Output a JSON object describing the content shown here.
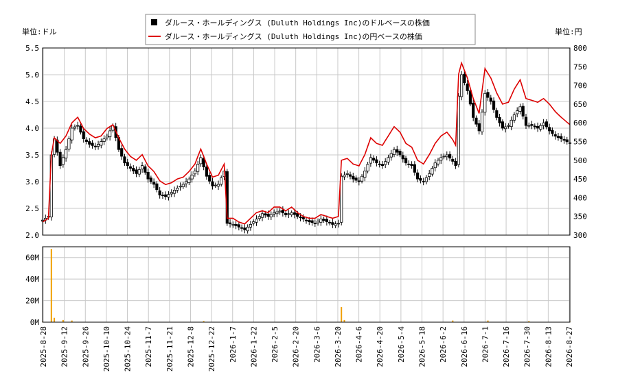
{
  "legend": {
    "usd_label": "ダルース・ホールディングス (Duluth Holdings Inc)のドルベースの株価",
    "jpy_label": "ダルース・ホールディングス (Duluth Holdings Inc)の円ベースの株価"
  },
  "axis_units": {
    "left": "単位:ドル",
    "right": "単位:円"
  },
  "colors": {
    "usd_candle": "#000000",
    "jpy_line": "#dd0000",
    "volume_bar": "#f0a000",
    "grid": "#c8c8c8"
  },
  "chart_data": {
    "type": "line",
    "title": "",
    "x_ticks": [
      "2025-8-28",
      "2025-9-12",
      "2025-9-26",
      "2025-10-10",
      "2025-10-24",
      "2025-11-7",
      "2025-11-21",
      "2025-12-8",
      "2025-12-22",
      "2026-1-7",
      "2026-1-22",
      "2026-2-5",
      "2026-2-20",
      "2026-3-6",
      "2026-3-20",
      "2026-4-6",
      "2026-4-20",
      "2026-5-4",
      "2026-5-18",
      "2026-6-2",
      "2026-6-16",
      "2026-7-1",
      "2026-7-16",
      "2026-7-30",
      "2026-8-13",
      "2026-8-27"
    ],
    "usd_axis": {
      "ylim": [
        2.0,
        5.5
      ],
      "ticks": [
        "2.0",
        "2.5",
        "3.0",
        "3.5",
        "4.0",
        "4.5",
        "5.0",
        "5.5"
      ]
    },
    "jpy_axis": {
      "ylim": [
        300,
        800
      ],
      "ticks": [
        "300",
        "350",
        "400",
        "450",
        "500",
        "550",
        "600",
        "650",
        "700",
        "750",
        "800"
      ]
    },
    "volume_axis": {
      "ylim": [
        0,
        70
      ],
      "unit": "M",
      "ticks": [
        "0M",
        "20M",
        "40M",
        "60M"
      ]
    },
    "usd_keypoints": [
      [
        0,
        2.28
      ],
      [
        2,
        2.35
      ],
      [
        3,
        3.5
      ],
      [
        4,
        3.8
      ],
      [
        6,
        3.3
      ],
      [
        8,
        3.6
      ],
      [
        10,
        4.0
      ],
      [
        12,
        4.05
      ],
      [
        14,
        3.8
      ],
      [
        16,
        3.7
      ],
      [
        18,
        3.65
      ],
      [
        20,
        3.75
      ],
      [
        22,
        3.85
      ],
      [
        24,
        4.05
      ],
      [
        26,
        3.6
      ],
      [
        28,
        3.35
      ],
      [
        30,
        3.25
      ],
      [
        32,
        3.15
      ],
      [
        34,
        3.3
      ],
      [
        36,
        3.05
      ],
      [
        38,
        2.95
      ],
      [
        40,
        2.75
      ],
      [
        42,
        2.72
      ],
      [
        44,
        2.8
      ],
      [
        46,
        2.88
      ],
      [
        48,
        2.95
      ],
      [
        50,
        3.05
      ],
      [
        52,
        3.2
      ],
      [
        54,
        3.45
      ],
      [
        56,
        3.1
      ],
      [
        58,
        2.92
      ],
      [
        60,
        2.95
      ],
      [
        62,
        3.2
      ],
      [
        63,
        2.22
      ],
      [
        65,
        2.2
      ],
      [
        67,
        2.15
      ],
      [
        69,
        2.1
      ],
      [
        71,
        2.2
      ],
      [
        73,
        2.3
      ],
      [
        75,
        2.4
      ],
      [
        77,
        2.35
      ],
      [
        79,
        2.42
      ],
      [
        81,
        2.45
      ],
      [
        83,
        2.38
      ],
      [
        85,
        2.42
      ],
      [
        87,
        2.35
      ],
      [
        89,
        2.3
      ],
      [
        91,
        2.25
      ],
      [
        93,
        2.22
      ],
      [
        95,
        2.3
      ],
      [
        97,
        2.25
      ],
      [
        99,
        2.2
      ],
      [
        101,
        2.22
      ],
      [
        102,
        3.1
      ],
      [
        104,
        3.15
      ],
      [
        106,
        3.05
      ],
      [
        108,
        3.0
      ],
      [
        110,
        3.2
      ],
      [
        112,
        3.45
      ],
      [
        114,
        3.35
      ],
      [
        116,
        3.3
      ],
      [
        118,
        3.45
      ],
      [
        120,
        3.6
      ],
      [
        122,
        3.5
      ],
      [
        124,
        3.35
      ],
      [
        126,
        3.3
      ],
      [
        128,
        3.05
      ],
      [
        130,
        3.0
      ],
      [
        132,
        3.15
      ],
      [
        134,
        3.35
      ],
      [
        136,
        3.45
      ],
      [
        138,
        3.5
      ],
      [
        140,
        3.38
      ],
      [
        141,
        3.3
      ],
      [
        142,
        4.6
      ],
      [
        143,
        5.0
      ],
      [
        145,
        4.7
      ],
      [
        147,
        4.2
      ],
      [
        149,
        3.95
      ],
      [
        151,
        4.65
      ],
      [
        153,
        4.5
      ],
      [
        155,
        4.2
      ],
      [
        157,
        4.0
      ],
      [
        159,
        4.05
      ],
      [
        161,
        4.25
      ],
      [
        163,
        4.4
      ],
      [
        165,
        4.05
      ],
      [
        167,
        4.05
      ],
      [
        169,
        4.0
      ],
      [
        171,
        4.1
      ],
      [
        173,
        3.95
      ],
      [
        175,
        3.85
      ],
      [
        177,
        3.8
      ],
      [
        180,
        3.72
      ]
    ],
    "jpy_keypoints": [
      [
        0,
        335
      ],
      [
        2,
        345
      ],
      [
        3,
        515
      ],
      [
        4,
        560
      ],
      [
        6,
        545
      ],
      [
        8,
        565
      ],
      [
        10,
        600
      ],
      [
        12,
        615
      ],
      [
        14,
        585
      ],
      [
        16,
        570
      ],
      [
        18,
        560
      ],
      [
        20,
        565
      ],
      [
        22,
        585
      ],
      [
        24,
        595
      ],
      [
        26,
        560
      ],
      [
        28,
        530
      ],
      [
        30,
        510
      ],
      [
        32,
        500
      ],
      [
        34,
        515
      ],
      [
        36,
        485
      ],
      [
        38,
        470
      ],
      [
        40,
        445
      ],
      [
        42,
        435
      ],
      [
        44,
        440
      ],
      [
        46,
        450
      ],
      [
        48,
        455
      ],
      [
        50,
        470
      ],
      [
        52,
        490
      ],
      [
        54,
        530
      ],
      [
        56,
        490
      ],
      [
        58,
        455
      ],
      [
        60,
        460
      ],
      [
        62,
        490
      ],
      [
        63,
        345
      ],
      [
        65,
        345
      ],
      [
        67,
        335
      ],
      [
        69,
        330
      ],
      [
        71,
        345
      ],
      [
        73,
        360
      ],
      [
        75,
        365
      ],
      [
        77,
        360
      ],
      [
        79,
        375
      ],
      [
        81,
        375
      ],
      [
        83,
        365
      ],
      [
        85,
        375
      ],
      [
        87,
        360
      ],
      [
        89,
        350
      ],
      [
        91,
        345
      ],
      [
        93,
        345
      ],
      [
        95,
        355
      ],
      [
        97,
        350
      ],
      [
        99,
        345
      ],
      [
        101,
        350
      ],
      [
        102,
        500
      ],
      [
        104,
        505
      ],
      [
        106,
        490
      ],
      [
        108,
        485
      ],
      [
        110,
        515
      ],
      [
        112,
        560
      ],
      [
        114,
        545
      ],
      [
        116,
        540
      ],
      [
        118,
        565
      ],
      [
        120,
        590
      ],
      [
        122,
        575
      ],
      [
        124,
        545
      ],
      [
        126,
        535
      ],
      [
        128,
        500
      ],
      [
        130,
        490
      ],
      [
        132,
        515
      ],
      [
        134,
        545
      ],
      [
        136,
        565
      ],
      [
        138,
        575
      ],
      [
        140,
        555
      ],
      [
        141,
        540
      ],
      [
        142,
        730
      ],
      [
        143,
        760
      ],
      [
        145,
        720
      ],
      [
        147,
        665
      ],
      [
        149,
        625
      ],
      [
        151,
        745
      ],
      [
        153,
        720
      ],
      [
        155,
        680
      ],
      [
        157,
        650
      ],
      [
        159,
        655
      ],
      [
        161,
        690
      ],
      [
        163,
        715
      ],
      [
        165,
        665
      ],
      [
        167,
        660
      ],
      [
        169,
        655
      ],
      [
        171,
        665
      ],
      [
        173,
        650
      ],
      [
        175,
        630
      ],
      [
        177,
        615
      ],
      [
        180,
        595
      ]
    ],
    "volume_spikes": [
      [
        3,
        68
      ],
      [
        4,
        4
      ],
      [
        7,
        2
      ],
      [
        10,
        1.5
      ],
      [
        55,
        1
      ],
      [
        102,
        14
      ],
      [
        103,
        2
      ],
      [
        140,
        1.5
      ],
      [
        152,
        1.5
      ],
      [
        166,
        1
      ]
    ],
    "volume_base": 0.3
  }
}
